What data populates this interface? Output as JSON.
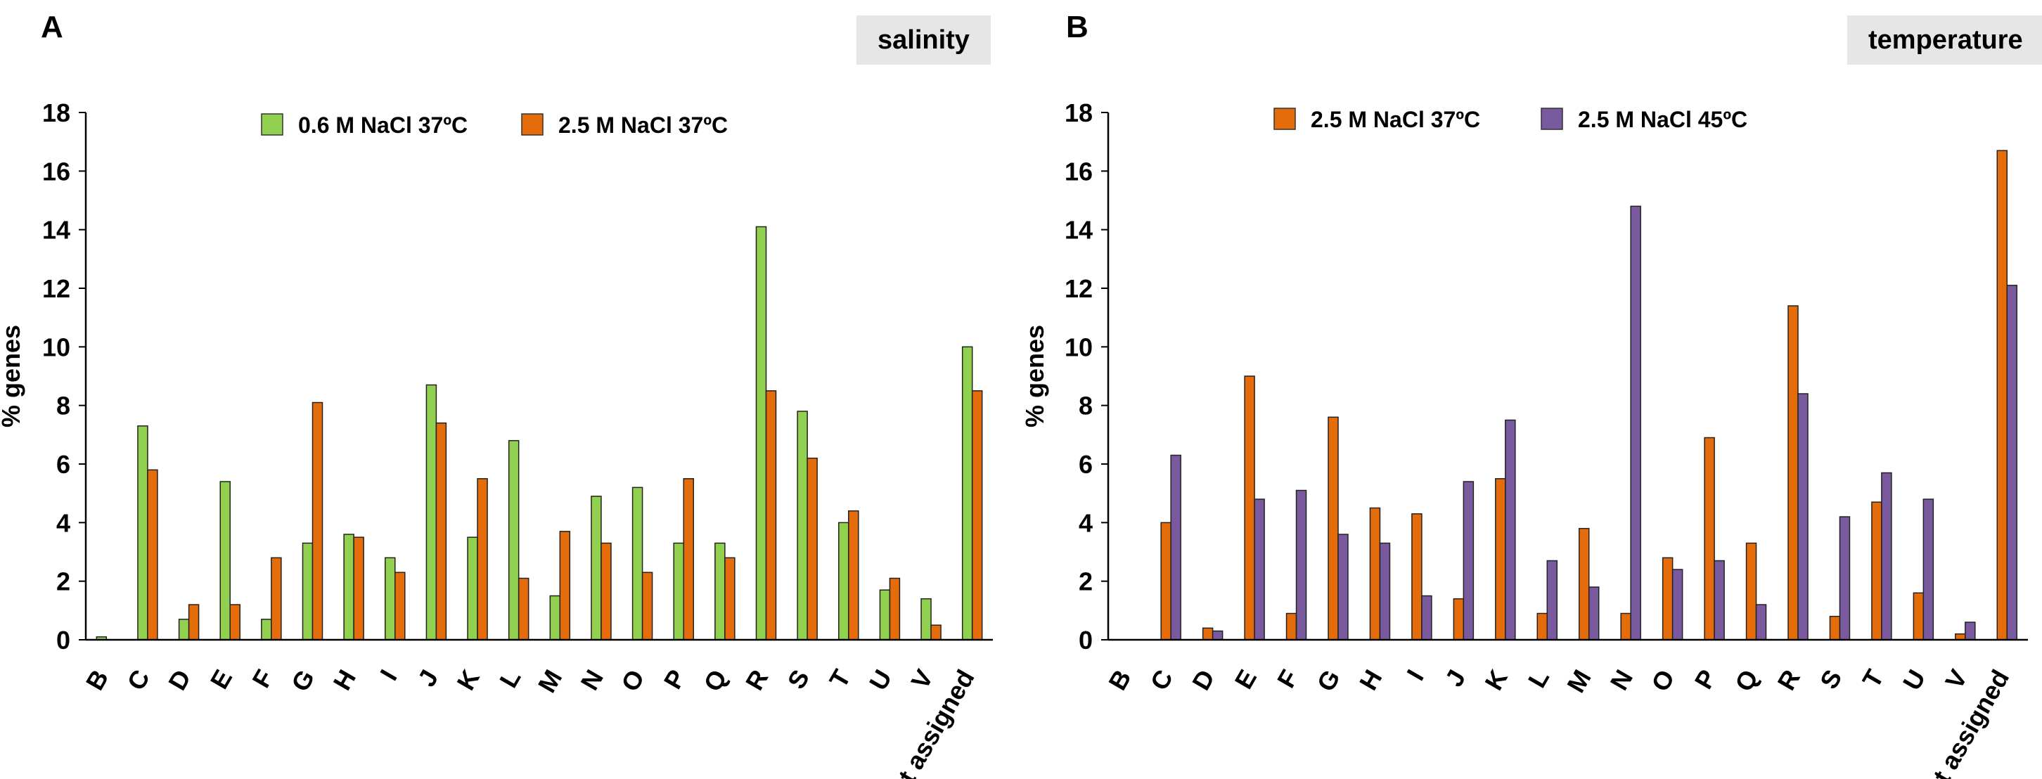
{
  "chart_data": [
    {
      "type": "bar",
      "panel_label": "A",
      "tag": "salinity",
      "title": "",
      "xlabel": "",
      "ylabel": "% genes",
      "ylim": [
        0,
        18
      ],
      "yticks": [
        "0",
        "2",
        "4",
        "6",
        "8",
        "10",
        "12",
        "14",
        "16",
        "18"
      ],
      "legend_position": "top-center",
      "categories": [
        "B",
        "C",
        "D",
        "E",
        "F",
        "G",
        "H",
        "I",
        "J",
        "K",
        "L",
        "M",
        "N",
        "O",
        "P",
        "Q",
        "R",
        "S",
        "T",
        "U",
        "V",
        "Not assigned"
      ],
      "series": [
        {
          "name": "0.6 M NaCl 37ºC",
          "color": "#92d050",
          "values": [
            0.1,
            7.3,
            0.7,
            5.4,
            0.7,
            3.3,
            3.6,
            2.8,
            8.7,
            3.5,
            6.8,
            1.5,
            4.9,
            5.2,
            3.3,
            3.3,
            14.1,
            7.8,
            4.0,
            1.7,
            1.4,
            10.0
          ]
        },
        {
          "name": "2.5 M NaCl 37ºC",
          "color": "#e46c0a",
          "values": [
            0,
            5.8,
            1.2,
            1.2,
            2.8,
            8.1,
            3.5,
            2.3,
            7.4,
            5.5,
            2.1,
            3.7,
            3.3,
            2.3,
            5.5,
            2.8,
            8.5,
            6.2,
            4.4,
            2.1,
            0.5,
            8.5
          ]
        }
      ]
    },
    {
      "type": "bar",
      "panel_label": "B",
      "tag": "temperature",
      "title": "",
      "xlabel": "",
      "ylabel": "% genes",
      "ylim": [
        0,
        18
      ],
      "yticks": [
        "0",
        "2",
        "4",
        "6",
        "8",
        "10",
        "12",
        "14",
        "16",
        "18"
      ],
      "legend_position": "top-center",
      "categories": [
        "B",
        "C",
        "D",
        "E",
        "F",
        "G",
        "H",
        "I",
        "J",
        "K",
        "L",
        "M",
        "N",
        "O",
        "P",
        "Q",
        "R",
        "S",
        "T",
        "U",
        "V",
        "Not assigned"
      ],
      "series": [
        {
          "name": "2.5 M NaCl 37ºC",
          "color": "#e46c0a",
          "values": [
            0,
            4.0,
            0.4,
            9.0,
            0.9,
            7.6,
            4.5,
            4.3,
            1.4,
            5.5,
            0.9,
            3.8,
            0.9,
            2.8,
            6.9,
            3.3,
            11.4,
            0.8,
            4.7,
            1.6,
            0.2,
            16.7
          ]
        },
        {
          "name": "2.5 M NaCl 45ºC",
          "color": "#7a5a9e",
          "values": [
            0,
            6.3,
            0.3,
            4.8,
            5.1,
            3.6,
            3.3,
            1.5,
            5.4,
            7.5,
            2.7,
            1.8,
            14.8,
            2.4,
            2.7,
            1.2,
            8.4,
            4.2,
            5.7,
            4.8,
            0.6,
            12.1
          ]
        }
      ]
    }
  ]
}
